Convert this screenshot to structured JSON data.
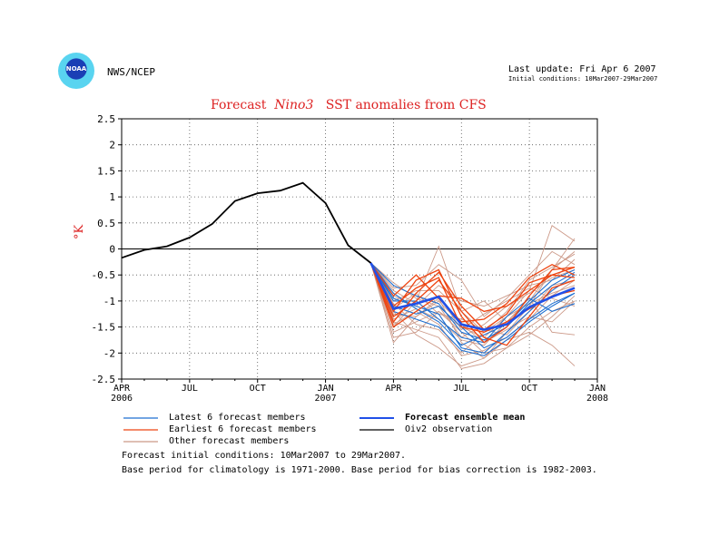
{
  "header": {
    "agency": "NWS/NCEP",
    "logo_text": "NOAA",
    "last_update": "Last update: Fri Apr 6 2007",
    "initial_conditions": "Initial conditions: 10Mar2007-29Mar2007"
  },
  "title": {
    "prefix": "Forecast",
    "region": "Nino3",
    "suffix": "SST anomalies from CFS"
  },
  "chart_data": {
    "type": "line",
    "ylabel": "°K",
    "ylim": [
      -2.5,
      2.5
    ],
    "yticks": [
      "2.5",
      "2",
      "1.5",
      "1",
      "0.5",
      "0",
      "-0.5",
      "-1",
      "-1.5",
      "-2",
      "-2.5"
    ],
    "xticks": [
      {
        "label": "APR",
        "sub": "2006"
      },
      {
        "label": "JUL",
        "sub": ""
      },
      {
        "label": "OCT",
        "sub": ""
      },
      {
        "label": "JAN",
        "sub": "2007"
      },
      {
        "label": "APR",
        "sub": ""
      },
      {
        "label": "JUL",
        "sub": ""
      },
      {
        "label": "OCT",
        "sub": ""
      },
      {
        "label": "JAN",
        "sub": "2008"
      }
    ],
    "x_range_months": [
      0,
      21
    ],
    "grid": true,
    "colors": {
      "observation": "#000000",
      "ensemble_mean": "#2050e8",
      "latest": "#1e6fd0",
      "earliest": "#ee4411",
      "other": "#cc9988"
    },
    "series": [
      {
        "name": "Oiv2 observation",
        "x": [
          0,
          1,
          2,
          3,
          4,
          5,
          6,
          7,
          8,
          9,
          10,
          11
        ],
        "y": [
          -0.17,
          -0.02,
          0.05,
          0.22,
          0.48,
          0.92,
          1.07,
          1.12,
          1.27,
          0.88,
          0.07,
          -0.27
        ]
      },
      {
        "name": "Forecast ensemble mean",
        "x": [
          11,
          12,
          13,
          14,
          15,
          16,
          17,
          18,
          19,
          20
        ],
        "y": [
          -0.27,
          -1.15,
          -1.05,
          -0.92,
          -1.45,
          -1.55,
          -1.45,
          -1.12,
          -0.92,
          -0.75
        ]
      },
      {
        "name": "Latest 6 forecast members",
        "members": [
          [
            -0.27,
            -0.95,
            -1.1,
            -1.25,
            -1.9,
            -2.0,
            -1.6,
            -1.2,
            -0.8,
            -0.5
          ],
          [
            -0.27,
            -0.7,
            -0.9,
            -1.05,
            -1.6,
            -1.75,
            -1.5,
            -1.05,
            -0.7,
            -0.45
          ],
          [
            -0.27,
            -1.2,
            -1.35,
            -1.5,
            -1.95,
            -2.05,
            -1.75,
            -1.4,
            -1.1,
            -0.85
          ],
          [
            -0.27,
            -1.0,
            -1.0,
            -1.35,
            -1.7,
            -1.8,
            -1.3,
            -0.95,
            -1.2,
            -1.05
          ],
          [
            -0.27,
            -0.85,
            -1.15,
            -1.4,
            -1.85,
            -1.65,
            -1.45,
            -1.0,
            -0.6,
            -0.4
          ],
          [
            -0.27,
            -1.1,
            -1.25,
            -1.1,
            -1.5,
            -1.9,
            -1.7,
            -1.35,
            -1.05,
            -0.85
          ]
        ]
      },
      {
        "name": "Earliest 6 forecast members",
        "members": [
          [
            -0.27,
            -1.4,
            -0.85,
            -0.45,
            -1.1,
            -1.55,
            -1.25,
            -0.65,
            -0.5,
            -0.55
          ],
          [
            -0.27,
            -1.2,
            -0.6,
            -0.4,
            -1.3,
            -1.8,
            -1.5,
            -0.9,
            -0.4,
            -0.35
          ],
          [
            -0.27,
            -0.9,
            -0.5,
            -0.95,
            -1.4,
            -1.35,
            -1.05,
            -0.55,
            -0.3,
            -0.5
          ],
          [
            -0.27,
            -1.3,
            -1.0,
            -0.6,
            -1.2,
            -1.7,
            -1.85,
            -1.3,
            -0.75,
            -0.6
          ],
          [
            -0.27,
            -1.5,
            -1.2,
            -0.9,
            -0.95,
            -1.2,
            -1.1,
            -0.8,
            -0.5,
            -0.35
          ],
          [
            -0.27,
            -1.1,
            -0.75,
            -0.55,
            -1.5,
            -1.6,
            -1.4,
            -1.15,
            -0.9,
            -0.8
          ]
        ]
      },
      {
        "name": "Other forecast members",
        "members": [
          [
            -0.27,
            -1.6,
            -1.4,
            -1.2,
            -1.5,
            -1.7,
            -1.3,
            -0.8,
            0.45,
            0.15
          ],
          [
            -0.27,
            -1.8,
            -1.3,
            -0.95,
            -1.8,
            -2.1,
            -1.6,
            -1.1,
            -0.4,
            0.2
          ],
          [
            -0.27,
            -1.0,
            -0.8,
            -0.8,
            -1.2,
            -1.0,
            -1.4,
            -1.0,
            -0.4,
            -0.05
          ],
          [
            -0.27,
            -0.75,
            -0.7,
            -0.3,
            -0.6,
            -1.3,
            -0.95,
            -0.5,
            -0.05,
            -0.3
          ],
          [
            -0.27,
            -1.4,
            -1.55,
            -1.7,
            -2.3,
            -2.2,
            -1.9,
            -1.5,
            -1.2,
            -1.0
          ],
          [
            -0.27,
            -1.2,
            -1.65,
            -1.9,
            -2.25,
            -2.1,
            -1.75,
            -1.6,
            -1.85,
            -2.25
          ],
          [
            -0.27,
            -0.9,
            -1.1,
            -0.7,
            -1.0,
            -1.1,
            -0.9,
            -0.7,
            -0.6,
            -0.2
          ],
          [
            -0.27,
            -1.5,
            -1.0,
            0.05,
            -1.2,
            -1.6,
            -1.2,
            -0.6,
            -0.35,
            -0.1
          ],
          [
            -0.27,
            -1.25,
            -1.3,
            -1.0,
            -1.45,
            -1.8,
            -1.55,
            -1.3,
            -1.4,
            -1.0
          ],
          [
            -0.27,
            -1.05,
            -1.45,
            -1.55,
            -2.0,
            -1.6,
            -1.3,
            -1.05,
            -0.85,
            -0.7
          ],
          [
            -0.27,
            -1.7,
            -1.6,
            -1.2,
            -1.6,
            -2.0,
            -1.9,
            -1.65,
            -1.3,
            -0.9
          ],
          [
            -0.27,
            -0.65,
            -0.95,
            -1.1,
            -1.7,
            -1.45,
            -1.1,
            -0.85,
            -0.55,
            -0.4
          ],
          [
            -0.27,
            -1.35,
            -1.15,
            -1.35,
            -1.75,
            -1.85,
            -1.4,
            -0.95,
            -1.6,
            -1.65
          ],
          [
            -0.27,
            -1.15,
            -0.85,
            -1.25,
            -1.35,
            -1.55,
            -1.65,
            -1.2,
            -0.7,
            -0.6
          ],
          [
            -0.27,
            -0.8,
            -1.05,
            -0.9,
            -1.55,
            -1.25,
            -1.0,
            -0.75,
            -0.95,
            -1.1
          ],
          [
            -0.27,
            -1.45,
            -1.2,
            -1.45,
            -2.05,
            -1.95,
            -1.7,
            -1.35,
            -0.9,
            -0.6
          ]
        ]
      }
    ],
    "legend": {
      "latest": "Latest 6 forecast members",
      "earliest": "Earliest 6 forecast members",
      "other": "Other forecast members",
      "mean": "Forecast ensemble mean",
      "obs": "Oiv2 observation"
    }
  },
  "footer": {
    "line1": "Forecast initial conditions: 10Mar2007 to 29Mar2007.",
    "line2": "Base period for climatology is 1971-2000. Base period for bias correction is 1982-2003."
  }
}
